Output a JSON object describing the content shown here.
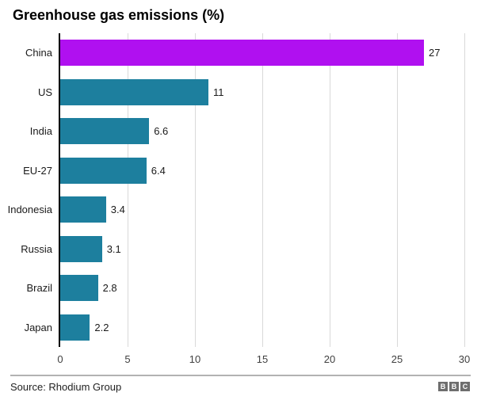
{
  "title": "Greenhouse gas emissions (%)",
  "source": "Source: Rhodium Group",
  "logo": {
    "name": "bbc-logo",
    "letters": [
      "B",
      "B",
      "C"
    ]
  },
  "colors": {
    "highlight_bar": "#b010f0",
    "default_bar": "#1d7f9e",
    "gridline": "#d9d9d9",
    "axis_line": "#000000",
    "divider": "#b2b2b2",
    "logo_gray": "#6e6e6e"
  },
  "chart_data": {
    "type": "bar",
    "orientation": "horizontal",
    "title": "Greenhouse gas emissions (%)",
    "categories": [
      "China",
      "US",
      "India",
      "EU-27",
      "Indonesia",
      "Russia",
      "Brazil",
      "Japan"
    ],
    "values": [
      27,
      11,
      6.6,
      6.4,
      3.4,
      3.1,
      2.8,
      2.2
    ],
    "highlight_index": 0,
    "xlabel": "",
    "ylabel": "",
    "xlim": [
      0,
      30
    ],
    "xticks": [
      0,
      5,
      10,
      15,
      20,
      25,
      30
    ],
    "grid": "vertical-only",
    "legend": "none",
    "value_labels_shown": true
  }
}
